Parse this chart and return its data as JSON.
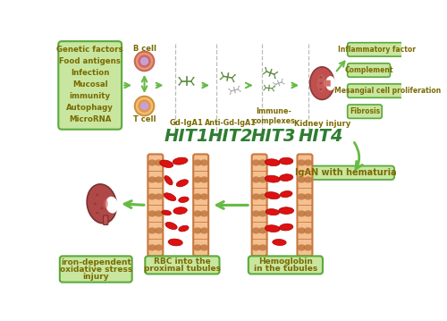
{
  "bg_color": "#ffffff",
  "light_green_box": "#c8e6a0",
  "green_border": "#5aaa3c",
  "olive_text": "#7a6a00",
  "arrow_color": "#66bb44",
  "hit_color": "#2e7d32",
  "kidney_color": "#c0504d",
  "kidney_dark": "#8b3a3a",
  "kidney_light": "#d4706a",
  "bcell_outer": "#e8a87c",
  "bcell_ring": "#d0607a",
  "bcell_nucleus": "#c8a0d0",
  "tcell_outer": "#f0c070",
  "tcell_ring": "#e09050",
  "tcell_nucleus": "#c8a0d8",
  "tubule_fill": "#f5c090",
  "tubule_border": "#c87840",
  "tubule_spot": "#c07840",
  "rbc_bright": "#dd1111",
  "rbc_dark": "#aa0000",
  "ab_green": "#5a8a3c",
  "ab_gray": "#aaaaaa",
  "box_left_lines": [
    "Genetic factors",
    "Food antigens",
    "Infection",
    "Mucosal",
    "immunity",
    "Autophagy",
    "MicroRNA"
  ],
  "box_right_lines": [
    "Inflammatory factor",
    "Complement",
    "Mesangial cell proliferation",
    "Fibrosis"
  ],
  "hit_labels": [
    "HIT1",
    "HIT2",
    "HIT3",
    "HIT4"
  ],
  "step_labels": [
    "Gd-IgA1",
    "Anti-Gd-IgA1",
    "Immune-\ncomplexes",
    "Kidney injury"
  ],
  "bottom_labels": [
    "iron-dependent\noxidative stress\ninjury",
    "RBC into the\nproximal tubules",
    "Hemoglobin\nin the tubules"
  ],
  "igan_label": "IgAN with hematuria"
}
